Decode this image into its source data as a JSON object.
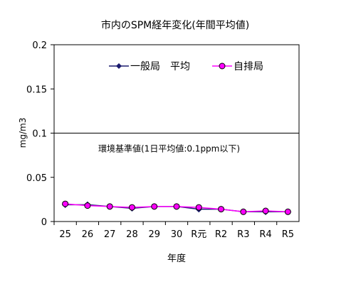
{
  "chart_data": {
    "type": "line",
    "title": "市内のSPM経年変化(年間平均値)",
    "xlabel": "年度",
    "ylabel": "mg/m3",
    "categories": [
      "25",
      "26",
      "27",
      "28",
      "29",
      "30",
      "R元",
      "R2",
      "R3",
      "R4",
      "R5"
    ],
    "ylim": [
      0,
      0.2
    ],
    "y_ticks": [
      "0",
      "0.05",
      "0.1",
      "0.15",
      "0.2"
    ],
    "grid": false,
    "legend_position": "top",
    "series": [
      {
        "name": "一般局　平均",
        "color": "#1a1a6e",
        "marker": "diamond",
        "values": [
          0.019,
          0.019,
          0.017,
          0.015,
          0.017,
          0.017,
          0.014,
          0.014,
          0.011,
          0.011,
          0.011
        ]
      },
      {
        "name": "自排局",
        "color": "#ff00ff",
        "marker": "circle",
        "values": [
          0.02,
          0.018,
          0.017,
          0.016,
          0.017,
          0.017,
          0.016,
          0.014,
          0.011,
          0.012,
          0.011
        ]
      }
    ],
    "reference_line": {
      "value": 0.1,
      "label": "環境基準値(1日平均値:0.1ppm以下)"
    }
  }
}
